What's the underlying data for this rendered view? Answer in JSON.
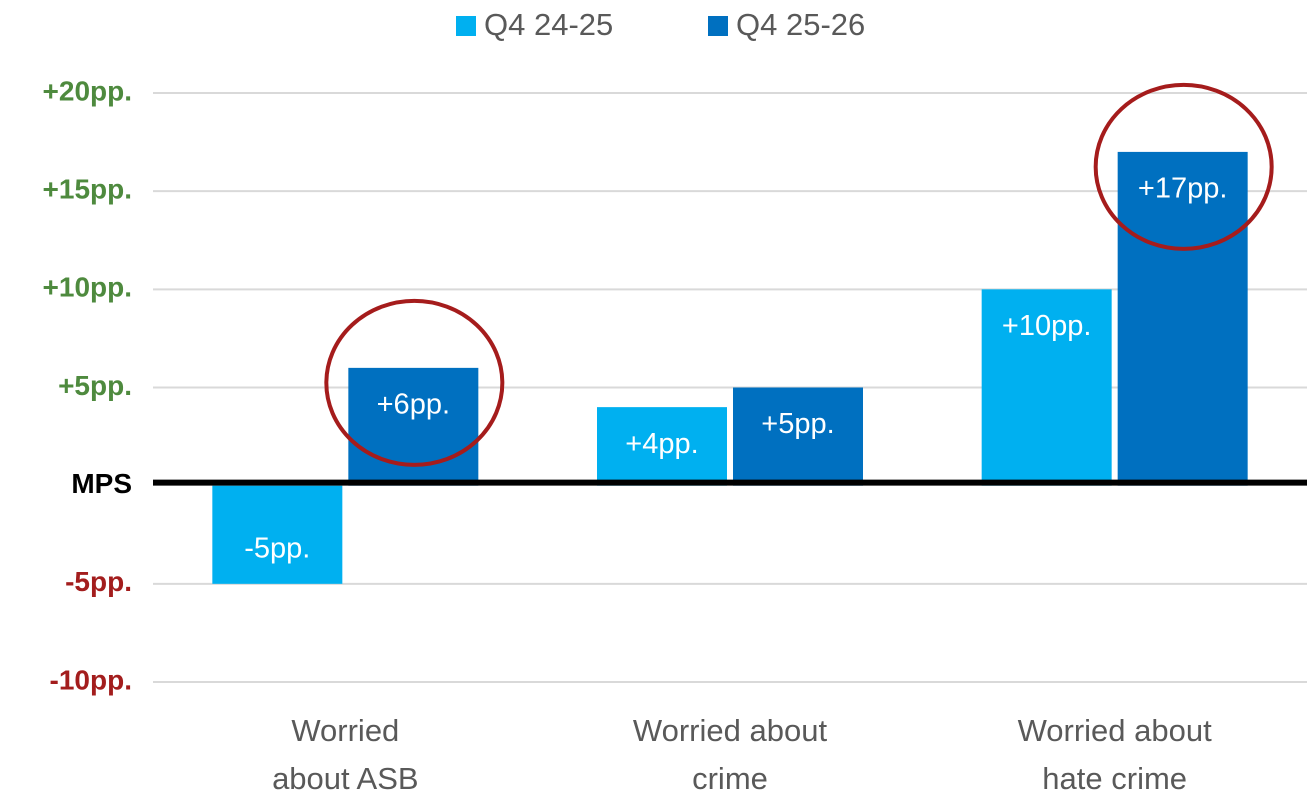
{
  "chart_data": {
    "type": "bar",
    "categories": [
      [
        "Worried",
        "about ASB"
      ],
      [
        "Worried about",
        "crime"
      ],
      [
        "Worried about",
        "hate crime"
      ]
    ],
    "series": [
      {
        "name": "Q4 24-25",
        "color": "#00b0f0",
        "values": [
          -5,
          4,
          10
        ],
        "value_labels": [
          "-5pp.",
          "+4pp.",
          "+10pp."
        ]
      },
      {
        "name": "Q4 25-26",
        "color": "#0070c0",
        "values": [
          6,
          5,
          17
        ],
        "value_labels": [
          "+6pp.",
          "+5pp.",
          "+17pp."
        ]
      }
    ],
    "ylim": [
      -10,
      20
    ],
    "yticks": [
      {
        "value": -10,
        "label": "-10pp."
      },
      {
        "value": -5,
        "label": "-5pp."
      },
      {
        "value": 0,
        "label": "MPS"
      },
      {
        "value": 5,
        "label": "+5pp."
      },
      {
        "value": 10,
        "label": "+10pp."
      },
      {
        "value": 15,
        "label": "+15pp."
      },
      {
        "value": 20,
        "label": "+20pp."
      }
    ],
    "tick_label_colors": {
      "positive": "#4e8a3e",
      "negative": "#a31d1d",
      "zero": "#000000"
    },
    "grid": true,
    "legend": "top",
    "highlights": [
      {
        "series": 1,
        "index": 0
      },
      {
        "series": 1,
        "index": 2
      }
    ],
    "highlight_color": "#a51c1c"
  }
}
